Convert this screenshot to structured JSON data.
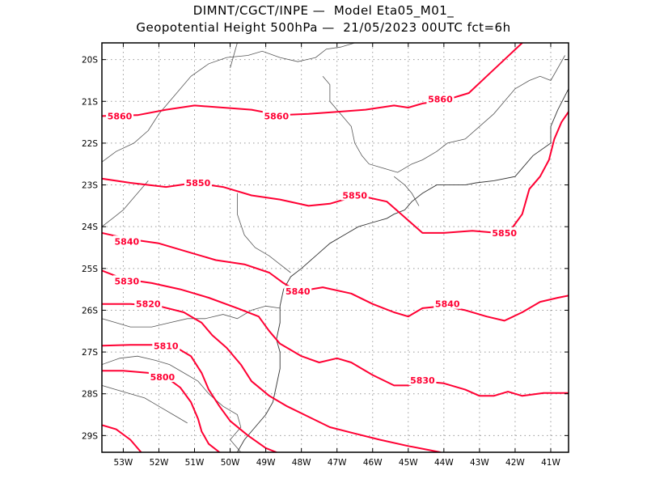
{
  "title": {
    "line1": "DIMNT/CGCT/INPE —  Model Eta05_M01_",
    "line2": "Geopotential Height 500hPa —  21/05/2023 00UTC fct=6h"
  },
  "map": {
    "lon_range": [
      -53.6,
      -40.5
    ],
    "lat_range": [
      -29.4,
      -19.6
    ],
    "lat_ticks": [
      {
        "value": -20,
        "label": "20S"
      },
      {
        "value": -21,
        "label": "21S"
      },
      {
        "value": -22,
        "label": "22S"
      },
      {
        "value": -23,
        "label": "23S"
      },
      {
        "value": -24,
        "label": "24S"
      },
      {
        "value": -25,
        "label": "25S"
      },
      {
        "value": -26,
        "label": "26S"
      },
      {
        "value": -27,
        "label": "27S"
      },
      {
        "value": -28,
        "label": "28S"
      },
      {
        "value": -29,
        "label": "29S"
      }
    ],
    "lon_ticks": [
      {
        "value": -53,
        "label": "53W"
      },
      {
        "value": -52,
        "label": "52W"
      },
      {
        "value": -51,
        "label": "51W"
      },
      {
        "value": -50,
        "label": "50W"
      },
      {
        "value": -49,
        "label": "49W"
      },
      {
        "value": -48,
        "label": "48W"
      },
      {
        "value": -47,
        "label": "47W"
      },
      {
        "value": -46,
        "label": "46W"
      },
      {
        "value": -45,
        "label": "45W"
      },
      {
        "value": -44,
        "label": "44W"
      },
      {
        "value": -43,
        "label": "43W"
      },
      {
        "value": -42,
        "label": "42W"
      },
      {
        "value": -41,
        "label": "41W"
      }
    ],
    "contour_color": "#ff0033",
    "grid_color": "#999999",
    "border_color": "#555555",
    "contours": [
      {
        "level": "5860",
        "labels": [
          [
            -53.1,
            -21.35
          ],
          [
            -48.7,
            -21.35
          ],
          [
            -44.1,
            -20.95
          ]
        ],
        "points": [
          [
            -53.6,
            -21.35
          ],
          [
            -52.6,
            -21.33
          ],
          [
            -51.8,
            -21.2
          ],
          [
            -51,
            -21.1
          ],
          [
            -50.2,
            -21.15
          ],
          [
            -49.4,
            -21.2
          ],
          [
            -48.6,
            -21.33
          ],
          [
            -47.8,
            -21.3
          ],
          [
            -47,
            -21.25
          ],
          [
            -46.2,
            -21.2
          ],
          [
            -45.4,
            -21.1
          ],
          [
            -45,
            -21.15
          ],
          [
            -44.6,
            -21.05
          ],
          [
            -44,
            -20.98
          ],
          [
            -43.3,
            -20.8
          ],
          [
            -42.8,
            -20.4
          ],
          [
            -42.3,
            -20
          ],
          [
            -41.8,
            -19.6
          ]
        ]
      },
      {
        "level": "5850",
        "labels": [
          [
            -50.9,
            -22.95
          ],
          [
            -46.5,
            -23.25
          ],
          [
            -42.3,
            -24.15
          ]
        ],
        "points": [
          [
            -53.6,
            -22.85
          ],
          [
            -52.8,
            -22.95
          ],
          [
            -51.8,
            -23.05
          ],
          [
            -51,
            -22.95
          ],
          [
            -50.2,
            -23.05
          ],
          [
            -49.4,
            -23.25
          ],
          [
            -48.6,
            -23.35
          ],
          [
            -47.8,
            -23.5
          ],
          [
            -47.2,
            -23.45
          ],
          [
            -46.4,
            -23.25
          ],
          [
            -45.6,
            -23.4
          ],
          [
            -45,
            -23.85
          ],
          [
            -44.6,
            -24.15
          ],
          [
            -44,
            -24.15
          ],
          [
            -43.2,
            -24.1
          ],
          [
            -42.5,
            -24.15
          ],
          [
            -42.1,
            -24.05
          ],
          [
            -41.8,
            -23.7
          ],
          [
            -41.6,
            -23.1
          ],
          [
            -41.3,
            -22.8
          ],
          [
            -41.05,
            -22.4
          ],
          [
            -40.9,
            -21.9
          ],
          [
            -40.7,
            -21.5
          ],
          [
            -40.5,
            -21.25
          ]
        ]
      },
      {
        "level": "5840",
        "labels": [
          [
            -52.9,
            -24.35
          ],
          [
            -48.1,
            -25.55
          ],
          [
            -43.9,
            -25.85
          ]
        ],
        "points": [
          [
            -53.6,
            -24.15
          ],
          [
            -52.8,
            -24.3
          ],
          [
            -52,
            -24.4
          ],
          [
            -51.2,
            -24.6
          ],
          [
            -50.4,
            -24.8
          ],
          [
            -49.6,
            -24.9
          ],
          [
            -48.9,
            -25.1
          ],
          [
            -48.5,
            -25.35
          ],
          [
            -48.1,
            -25.55
          ],
          [
            -47.4,
            -25.45
          ],
          [
            -46.6,
            -25.6
          ],
          [
            -46,
            -25.85
          ],
          [
            -45.4,
            -26.05
          ],
          [
            -45,
            -26.15
          ],
          [
            -44.6,
            -25.95
          ],
          [
            -44,
            -25.9
          ],
          [
            -43.4,
            -26
          ],
          [
            -42.8,
            -26.15
          ],
          [
            -42.3,
            -26.25
          ],
          [
            -41.8,
            -26.05
          ],
          [
            -41.3,
            -25.8
          ],
          [
            -40.8,
            -25.7
          ],
          [
            -40.5,
            -25.65
          ]
        ]
      },
      {
        "level": "5830",
        "labels": [
          [
            -52.9,
            -25.3
          ],
          [
            -44.6,
            -27.68
          ]
        ],
        "points": [
          [
            -53.6,
            -25.05
          ],
          [
            -53,
            -25.25
          ],
          [
            -52.2,
            -25.35
          ],
          [
            -51.4,
            -25.5
          ],
          [
            -50.6,
            -25.7
          ],
          [
            -49.8,
            -25.95
          ],
          [
            -49.2,
            -26.15
          ],
          [
            -48.9,
            -26.5
          ],
          [
            -48.6,
            -26.8
          ],
          [
            -48,
            -27.1
          ],
          [
            -47.5,
            -27.25
          ],
          [
            -47,
            -27.15
          ],
          [
            -46.6,
            -27.25
          ],
          [
            -46,
            -27.55
          ],
          [
            -45.4,
            -27.8
          ],
          [
            -45,
            -27.8
          ],
          [
            -44.6,
            -27.7
          ],
          [
            -44,
            -27.75
          ],
          [
            -43.4,
            -27.9
          ],
          [
            -43,
            -28.05
          ],
          [
            -42.6,
            -28.05
          ],
          [
            -42.2,
            -27.95
          ],
          [
            -41.8,
            -28.05
          ],
          [
            -41.2,
            -27.98
          ],
          [
            -40.5,
            -27.98
          ]
        ]
      },
      {
        "level": "5820",
        "labels": [
          [
            -52.3,
            -25.85
          ]
        ],
        "points": [
          [
            -53.6,
            -25.85
          ],
          [
            -52.8,
            -25.85
          ],
          [
            -52,
            -25.9
          ],
          [
            -51.3,
            -26.05
          ],
          [
            -50.8,
            -26.3
          ],
          [
            -50.5,
            -26.6
          ],
          [
            -50.1,
            -26.9
          ],
          [
            -49.7,
            -27.3
          ],
          [
            -49.4,
            -27.7
          ],
          [
            -48.9,
            -28.05
          ],
          [
            -48.4,
            -28.3
          ],
          [
            -47.8,
            -28.55
          ],
          [
            -47.2,
            -28.8
          ],
          [
            -46.5,
            -28.95
          ],
          [
            -45.8,
            -29.1
          ],
          [
            -45,
            -29.25
          ],
          [
            -44.4,
            -29.35
          ],
          [
            -44.1,
            -29.4
          ]
        ]
      },
      {
        "level": "5810",
        "labels": [
          [
            -51.8,
            -26.85
          ]
        ],
        "points": [
          [
            -53.6,
            -26.85
          ],
          [
            -52.8,
            -26.83
          ],
          [
            -52,
            -26.83
          ],
          [
            -51.5,
            -26.9
          ],
          [
            -51.1,
            -27.1
          ],
          [
            -50.8,
            -27.5
          ],
          [
            -50.6,
            -27.9
          ],
          [
            -50.3,
            -28.3
          ],
          [
            -50,
            -28.65
          ],
          [
            -49.5,
            -29
          ],
          [
            -49,
            -29.3
          ],
          [
            -48.7,
            -29.4
          ]
        ]
      },
      {
        "level": "5800",
        "labels": [
          [
            -51.9,
            -27.6
          ]
        ],
        "points": [
          [
            -53.6,
            -27.45
          ],
          [
            -53,
            -27.45
          ],
          [
            -52.3,
            -27.5
          ],
          [
            -51.8,
            -27.6
          ],
          [
            -51.4,
            -27.85
          ],
          [
            -51.1,
            -28.2
          ],
          [
            -50.9,
            -28.6
          ],
          [
            -50.8,
            -28.9
          ],
          [
            -50.6,
            -29.2
          ],
          [
            -50.3,
            -29.4
          ]
        ]
      },
      {
        "level": "5790",
        "labels": [],
        "points": [
          [
            -53.6,
            -28.75
          ],
          [
            -53.2,
            -28.85
          ],
          [
            -52.8,
            -29.1
          ],
          [
            -52.5,
            -29.4
          ]
        ]
      }
    ],
    "borders": [
      [
        [
          -53.6,
          -22.45
        ],
        [
          -53.2,
          -22.2
        ],
        [
          -52.7,
          -22.0
        ],
        [
          -52.3,
          -21.7
        ],
        [
          -52,
          -21.3
        ],
        [
          -51.6,
          -20.9
        ],
        [
          -51.1,
          -20.4
        ],
        [
          -50.6,
          -20.1
        ],
        [
          -50.1,
          -19.95
        ],
        [
          -49.5,
          -19.9
        ],
        [
          -49.1,
          -19.8
        ],
        [
          -48.6,
          -19.95
        ],
        [
          -48.1,
          -20.05
        ],
        [
          -47.6,
          -19.95
        ],
        [
          -47.3,
          -19.75
        ],
        [
          -46.9,
          -19.7
        ],
        [
          -46.5,
          -19.6
        ]
      ],
      [
        [
          -49.8,
          -19.6
        ],
        [
          -49.9,
          -19.9
        ],
        [
          -50.0,
          -20.2
        ]
      ],
      [
        [
          -47.4,
          -20.4
        ],
        [
          -47.2,
          -20.6
        ],
        [
          -47.2,
          -21.0
        ],
        [
          -46.9,
          -21.3
        ],
        [
          -46.6,
          -21.6
        ],
        [
          -46.5,
          -22.0
        ],
        [
          -46.3,
          -22.3
        ],
        [
          -46.1,
          -22.5
        ],
        [
          -45.7,
          -22.6
        ],
        [
          -45.3,
          -22.7
        ],
        [
          -44.9,
          -22.5
        ],
        [
          -44.6,
          -22.4
        ],
        [
          -44.2,
          -22.2
        ],
        [
          -43.9,
          -22.0
        ],
        [
          -43.4,
          -21.9
        ],
        [
          -43.0,
          -21.6
        ],
        [
          -42.6,
          -21.3
        ],
        [
          -42.3,
          -21.0
        ],
        [
          -42.0,
          -20.7
        ],
        [
          -41.6,
          -20.5
        ],
        [
          -41.3,
          -20.4
        ],
        [
          -41.0,
          -20.5
        ],
        [
          -40.8,
          -20.2
        ],
        [
          -40.6,
          -19.9
        ]
      ],
      [
        [
          -53.6,
          -24.0
        ],
        [
          -53.3,
          -23.8
        ],
        [
          -53.0,
          -23.6
        ],
        [
          -52.7,
          -23.3
        ],
        [
          -52.3,
          -22.9
        ]
      ],
      [
        [
          -53.6,
          -26.2
        ],
        [
          -53.2,
          -26.3
        ],
        [
          -52.8,
          -26.4
        ],
        [
          -52.2,
          -26.4
        ],
        [
          -51.7,
          -26.3
        ],
        [
          -51.2,
          -26.2
        ],
        [
          -50.7,
          -26.2
        ],
        [
          -50.2,
          -26.1
        ],
        [
          -49.8,
          -26.2
        ],
        [
          -49.4,
          -26.0
        ],
        [
          -49.0,
          -25.9
        ],
        [
          -48.6,
          -25.95
        ]
      ],
      [
        [
          -53.6,
          -27.3
        ],
        [
          -53.1,
          -27.15
        ],
        [
          -52.6,
          -27.1
        ],
        [
          -52.1,
          -27.2
        ],
        [
          -51.7,
          -27.3
        ],
        [
          -51.3,
          -27.5
        ],
        [
          -50.9,
          -27.7
        ],
        [
          -50.6,
          -28.0
        ],
        [
          -50.2,
          -28.3
        ],
        [
          -49.8,
          -28.5
        ],
        [
          -49.7,
          -28.8
        ],
        [
          -50.0,
          -29.1
        ],
        [
          -49.8,
          -29.3
        ],
        [
          -49.7,
          -29.4
        ]
      ],
      [
        [
          -53.6,
          -27.8
        ],
        [
          -53.2,
          -27.9
        ],
        [
          -52.8,
          -28.0
        ],
        [
          -52.4,
          -28.1
        ],
        [
          -52.0,
          -28.3
        ],
        [
          -51.6,
          -28.5
        ],
        [
          -51.2,
          -28.7
        ]
      ],
      [
        [
          -49.8,
          -23.2
        ],
        [
          -49.8,
          -23.7
        ],
        [
          -49.6,
          -24.2
        ],
        [
          -49.3,
          -24.5
        ],
        [
          -48.9,
          -24.7
        ],
        [
          -48.6,
          -24.9
        ],
        [
          -48.3,
          -25.1
        ]
      ],
      [
        [
          -45.4,
          -22.8
        ],
        [
          -45.1,
          -23.0
        ],
        [
          -44.9,
          -23.2
        ],
        [
          -44.7,
          -23.5
        ]
      ]
    ],
    "coastline": [
      [
        -40.5,
        -20.7
      ],
      [
        -40.8,
        -21.2
      ],
      [
        -41.0,
        -21.6
      ],
      [
        -41.0,
        -22.0
      ],
      [
        -41.5,
        -22.3
      ],
      [
        -42.0,
        -22.8
      ],
      [
        -42.6,
        -22.9
      ],
      [
        -43.1,
        -22.95
      ],
      [
        -43.4,
        -23.0
      ],
      [
        -43.8,
        -23.0
      ],
      [
        -44.2,
        -23.0
      ],
      [
        -44.6,
        -23.2
      ],
      [
        -44.9,
        -23.4
      ],
      [
        -45.1,
        -23.6
      ],
      [
        -45.4,
        -23.7
      ],
      [
        -45.6,
        -23.8
      ],
      [
        -46.0,
        -23.9
      ],
      [
        -46.4,
        -24.0
      ],
      [
        -46.8,
        -24.2
      ],
      [
        -47.2,
        -24.4
      ],
      [
        -47.6,
        -24.7
      ],
      [
        -48.0,
        -25.0
      ],
      [
        -48.3,
        -25.2
      ],
      [
        -48.5,
        -25.5
      ],
      [
        -48.6,
        -25.9
      ],
      [
        -48.6,
        -26.3
      ],
      [
        -48.7,
        -26.7
      ],
      [
        -48.6,
        -27.0
      ],
      [
        -48.6,
        -27.4
      ],
      [
        -48.7,
        -27.8
      ],
      [
        -48.8,
        -28.2
      ],
      [
        -49.0,
        -28.5
      ],
      [
        -49.3,
        -28.8
      ],
      [
        -49.6,
        -29.1
      ],
      [
        -49.8,
        -29.4
      ]
    ]
  }
}
